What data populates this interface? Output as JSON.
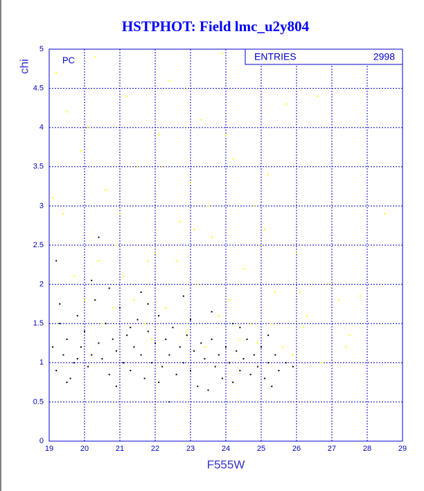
{
  "chart_data": {
    "type": "scatter",
    "title": "HSTPHOT: Field lmc_u2y804",
    "x_label": "F555W",
    "y_label": "chi",
    "annotation": "PC",
    "stats": {
      "label": "ENTRIES",
      "entries": 2998
    },
    "xlim": [
      19,
      29
    ],
    "ylim": [
      0,
      5
    ],
    "xticks": [
      19,
      20,
      21,
      22,
      23,
      24,
      25,
      26,
      27,
      28,
      29
    ],
    "yticks": [
      0,
      0.5,
      1,
      1.5,
      2,
      2.5,
      3,
      3.5,
      4,
      4.5,
      5
    ],
    "grid": true,
    "series": [
      {
        "color": "#ffff00",
        "x": [
          19.2,
          19.5,
          19.9,
          20.3,
          20.6,
          20.9,
          21.2,
          21.5,
          21.8,
          22.1,
          22.4,
          22.7,
          23.0,
          23.3,
          23.6,
          23.9,
          24.2,
          24.5,
          24.8,
          25.1,
          25.4,
          25.7,
          26.0,
          26.3,
          26.6,
          26.9,
          27.2,
          27.5,
          27.8,
          28.5,
          19.4,
          19.7,
          20.0,
          20.4,
          20.8,
          21.1,
          21.4,
          21.7,
          22.0,
          22.3,
          22.6,
          22.9,
          23.2,
          23.5,
          23.8,
          24.1,
          24.4,
          24.7,
          25.0,
          25.3,
          25.6,
          25.9,
          26.2,
          19.1,
          20.1,
          21.0,
          22.2,
          23.1,
          24.0,
          25.2,
          26.1,
          20.5,
          21.9,
          23.4,
          24.9,
          26.7,
          27.4
        ],
        "y": [
          4.7,
          4.2,
          3.7,
          4.9,
          3.2,
          2.5,
          4.4,
          3.5,
          2.3,
          3.9,
          4.6,
          2.8,
          3.3,
          4.1,
          2.6,
          4.95,
          3.6,
          2.2,
          3.0,
          2.7,
          1.9,
          4.3,
          2.4,
          1.6,
          4.4,
          2.0,
          1.8,
          1.35,
          1.85,
          2.9,
          2.9,
          2.1,
          1.8,
          2.3,
          1.7,
          2.1,
          1.8,
          1.5,
          2.4,
          1.7,
          2.3,
          1.4,
          2.0,
          3.0,
          1.6,
          1.8,
          1.3,
          1.5,
          2.5,
          1.5,
          1.2,
          1.1,
          1.45,
          3.1,
          4.0,
          2.9,
          3.5,
          2.7,
          3.9,
          3.4,
          1.9,
          1.5,
          1.3,
          1.2,
          1.25,
          1.0,
          1.2
        ]
      },
      {
        "color": "#000000",
        "x": [
          19.1,
          19.2,
          19.3,
          19.4,
          19.5,
          19.6,
          19.7,
          19.8,
          19.9,
          20.0,
          20.1,
          20.2,
          20.3,
          20.4,
          20.5,
          20.6,
          20.7,
          20.8,
          20.9,
          21.0,
          21.1,
          21.2,
          21.3,
          21.4,
          21.5,
          21.6,
          21.7,
          21.8,
          21.9,
          22.0,
          22.1,
          22.2,
          22.3,
          22.4,
          22.5,
          22.6,
          22.7,
          22.8,
          22.9,
          23.0,
          23.1,
          23.2,
          23.3,
          23.4,
          23.5,
          23.6,
          23.7,
          23.8,
          23.9,
          24.0,
          24.1,
          24.2,
          24.3,
          24.4,
          24.5,
          24.6,
          24.7,
          24.8,
          24.9,
          25.0,
          25.1,
          25.2,
          25.3,
          25.4,
          25.5,
          25.7,
          25.9,
          19.3,
          20.2,
          21.6,
          22.8,
          23.6,
          19.5,
          20.9,
          22.1,
          24.4,
          20.4,
          22.4,
          19.2,
          20.7,
          21.8,
          23.0,
          24.2,
          25.2,
          19.8,
          21.3
        ],
        "y": [
          1.2,
          0.9,
          1.5,
          1.1,
          1.3,
          0.8,
          1.0,
          1.6,
          1.2,
          1.4,
          0.95,
          1.1,
          1.8,
          1.25,
          1.05,
          1.5,
          0.85,
          1.3,
          1.15,
          1.7,
          1.0,
          1.35,
          0.9,
          1.2,
          1.55,
          1.1,
          0.8,
          1.4,
          1.0,
          1.25,
          1.6,
          0.95,
          1.3,
          1.1,
          1.45,
          0.85,
          1.2,
          1.0,
          1.35,
          0.9,
          1.15,
          0.7,
          1.25,
          1.05,
          0.65,
          1.3,
          0.95,
          1.1,
          0.8,
          1.2,
          1.0,
          0.75,
          1.15,
          0.9,
          1.05,
          1.3,
          0.85,
          1.1,
          0.95,
          1.2,
          0.8,
          1.0,
          0.7,
          1.1,
          0.9,
          1.0,
          0.95,
          1.75,
          2.05,
          1.9,
          1.85,
          1.65,
          0.75,
          0.7,
          0.75,
          1.45,
          2.6,
          0.5,
          2.3,
          1.95,
          1.75,
          1.55,
          1.5,
          1.35,
          1.05,
          1.45
        ]
      }
    ]
  }
}
